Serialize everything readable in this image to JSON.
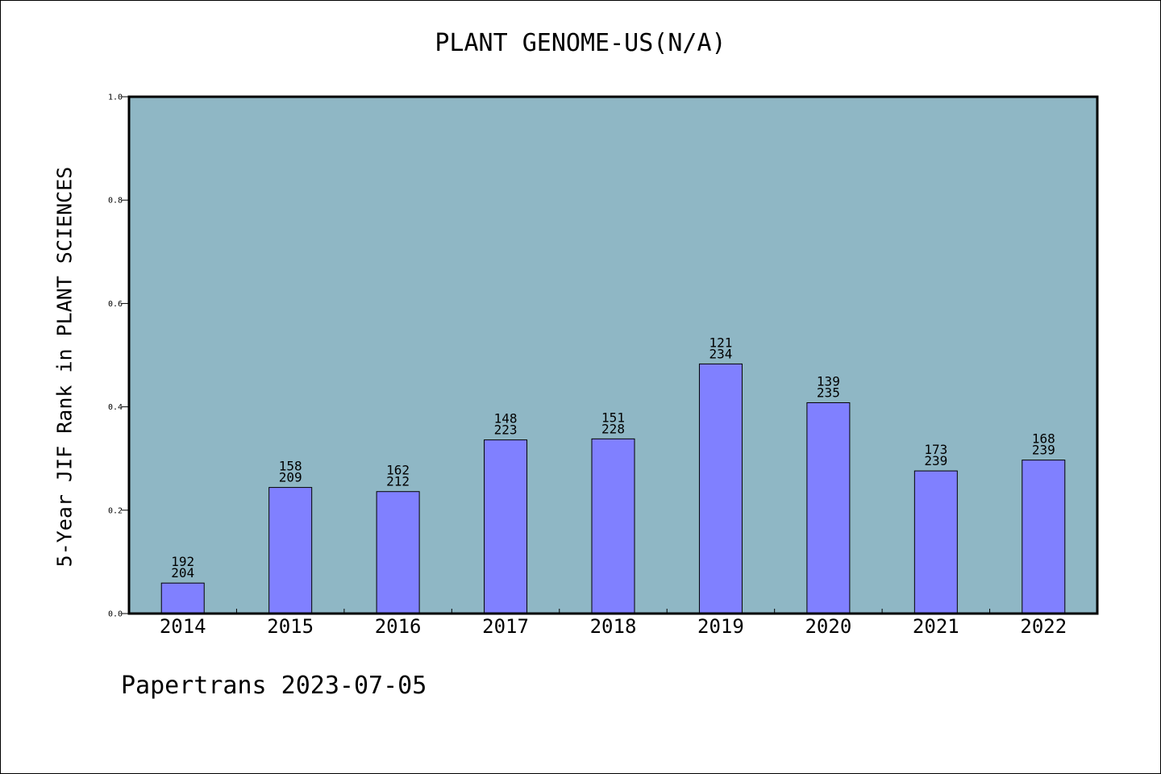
{
  "chart_data": {
    "type": "bar",
    "title": "PLANT GENOME-US(N/A)",
    "xlabel": "",
    "ylabel": "5-Year JIF Rank in PLANT SCIENCES",
    "ylim": [
      0,
      1.0
    ],
    "yticks": [
      "0.0",
      "0.2",
      "0.4",
      "0.6",
      "0.8",
      "1.0"
    ],
    "categories": [
      "2014",
      "2015",
      "2016",
      "2017",
      "2018",
      "2019",
      "2020",
      "2021",
      "2022"
    ],
    "values": [
      0.059,
      0.244,
      0.236,
      0.336,
      0.338,
      0.483,
      0.408,
      0.276,
      0.297
    ],
    "labels": [
      [
        "192",
        "204"
      ],
      [
        "158",
        "209"
      ],
      [
        "162",
        "212"
      ],
      [
        "148",
        "223"
      ],
      [
        "151",
        "228"
      ],
      [
        "121",
        "234"
      ],
      [
        "139",
        "235"
      ],
      [
        "173",
        "239"
      ],
      [
        "168",
        "239"
      ]
    ],
    "grid": false,
    "colors": {
      "plot_background": "#8fb7c5",
      "bar_fill": "#8080ff",
      "bar_edge": "#000000"
    }
  },
  "footer": "Papertrans 2023-07-05"
}
